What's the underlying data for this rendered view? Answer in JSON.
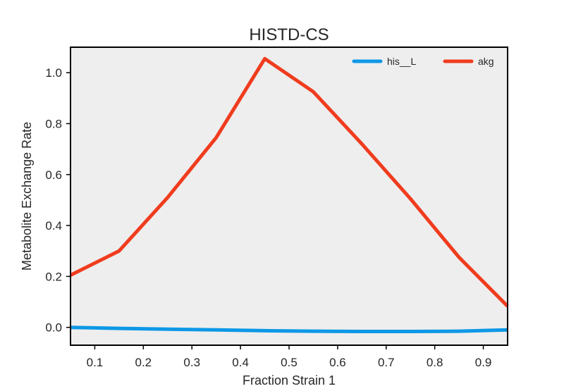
{
  "chart_data": {
    "type": "line",
    "title": "HISTD-CS",
    "xlabel": "Fraction Strain 1",
    "ylabel": "Metabolite Exchange Rate",
    "xlim": [
      0.05,
      0.95
    ],
    "ylim": [
      -0.07,
      1.1
    ],
    "xticks": [
      "0.1",
      "0.2",
      "0.3",
      "0.4",
      "0.5",
      "0.6",
      "0.7",
      "0.8",
      "0.9"
    ],
    "yticks": [
      "0.0",
      "0.2",
      "0.4",
      "0.6",
      "0.8",
      "1.0"
    ],
    "grid": false,
    "legend_position": "top-right",
    "x": [
      0.05,
      0.15,
      0.25,
      0.35,
      0.45,
      0.55,
      0.65,
      0.75,
      0.85,
      0.95
    ],
    "series": [
      {
        "name": "his__L",
        "color": "#0d98e6",
        "values": [
          0.0,
          -0.004,
          -0.007,
          -0.01,
          -0.013,
          -0.015,
          -0.016,
          -0.016,
          -0.015,
          -0.01
        ]
      },
      {
        "name": "akg",
        "color": "#f03c1e",
        "values": [
          0.205,
          0.3,
          0.51,
          0.745,
          1.055,
          0.925,
          0.72,
          0.505,
          0.275,
          0.083
        ]
      }
    ]
  }
}
